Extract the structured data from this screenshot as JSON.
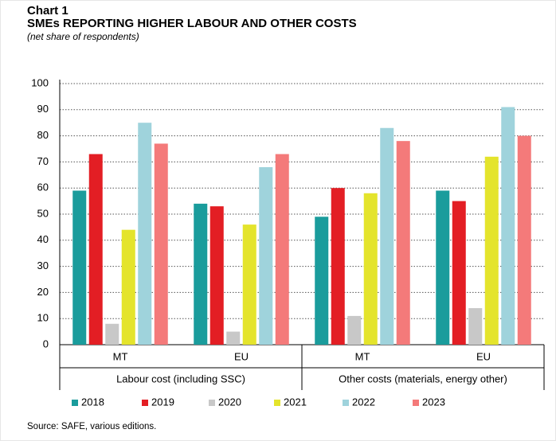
{
  "chart_data": {
    "type": "bar",
    "label": "Chart 1",
    "title": "SMEs REPORTING HIGHER LABOUR AND OTHER COSTS",
    "subtitle": "(net share of respondents)",
    "source": "Source: SAFE, various editions.",
    "categories": [
      "MT",
      "EU",
      "MT",
      "EU"
    ],
    "groups": [
      "Labour cost (including SSC)",
      "Other costs (materials, energy other)"
    ],
    "series": [
      {
        "name": "2018",
        "color": "#1a9c9c",
        "values": [
          59,
          54,
          49,
          59
        ]
      },
      {
        "name": "2019",
        "color": "#e31e24",
        "values": [
          73,
          53,
          60,
          55
        ]
      },
      {
        "name": "2020",
        "color": "#c8c8c8",
        "values": [
          8,
          5,
          11,
          14
        ]
      },
      {
        "name": "2021",
        "color": "#e4e42c",
        "values": [
          44,
          46,
          58,
          72
        ]
      },
      {
        "name": "2022",
        "color": "#9fd3dc",
        "values": [
          85,
          68,
          83,
          91
        ]
      },
      {
        "name": "2023",
        "color": "#f47a7a",
        "values": [
          77,
          73,
          78,
          80
        ]
      }
    ],
    "ylim": [
      0,
      100
    ],
    "yticks": [
      0,
      10,
      20,
      30,
      40,
      50,
      60,
      70,
      80,
      90,
      100
    ],
    "grid": true,
    "legend": "bottom"
  }
}
